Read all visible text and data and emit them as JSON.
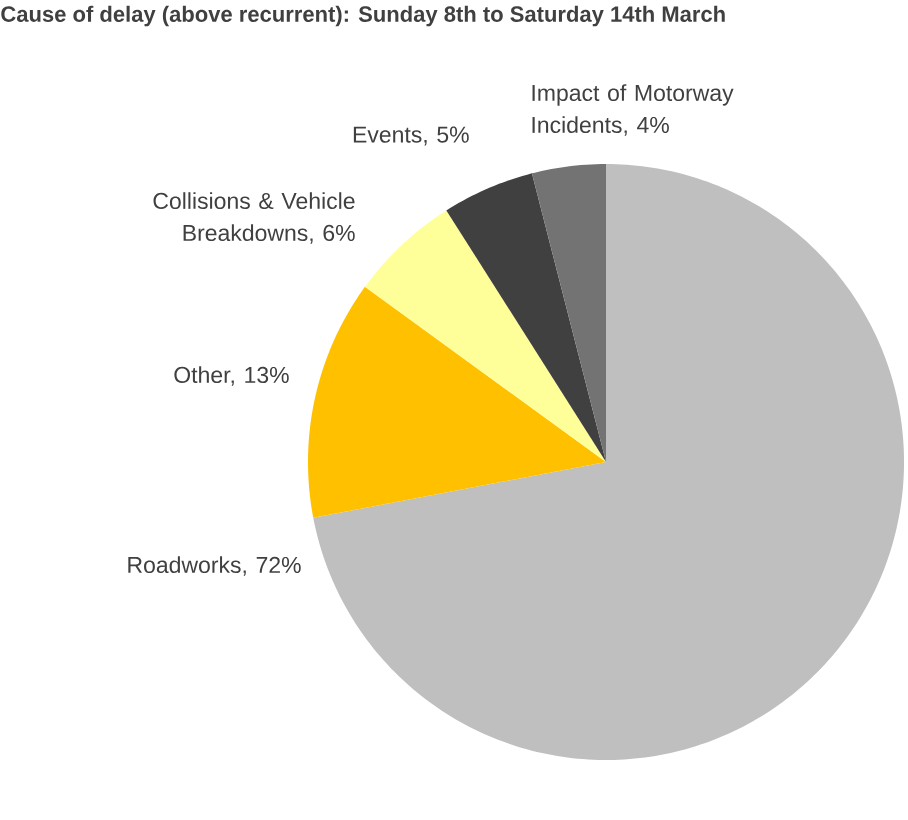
{
  "chart_data": {
    "type": "pie",
    "title": "Cause of delay (above recurrent): Sunday 8th to Saturday 14th March",
    "categories": [
      "Roadworks, 72%",
      "Other, 13%",
      "Collisions & Vehicle Breakdowns, 6%",
      "Events, 5%",
      "Impact of Motorway Incidents, 4%"
    ],
    "values": [
      72,
      13,
      6,
      5,
      4
    ],
    "colors": [
      "#bfbfbf",
      "#ffc000",
      "#ffff99",
      "#404040",
      "#737373"
    ]
  }
}
